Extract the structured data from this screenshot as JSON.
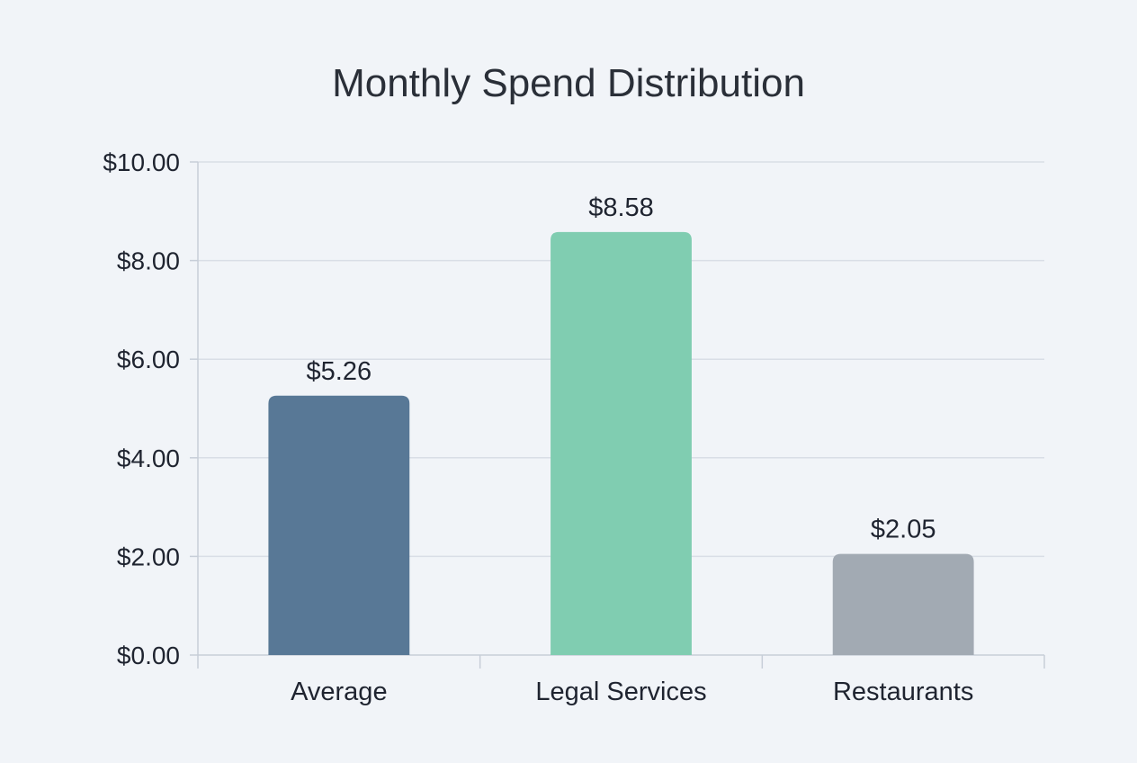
{
  "chart_data": {
    "type": "bar",
    "title": "Monthly Spend Distribution",
    "xlabel": "",
    "ylabel": "",
    "categories": [
      "Average",
      "Legal Services",
      "Restaurants"
    ],
    "values": [
      5.26,
      8.58,
      2.05
    ],
    "value_labels": [
      "$5.26",
      "$8.58",
      "$2.05"
    ],
    "colors": [
      "#587896",
      "#80cdb1",
      "#a2aab3"
    ],
    "ylim": [
      0,
      10
    ],
    "yticks": [
      0,
      2,
      4,
      6,
      8,
      10
    ],
    "ytick_labels": [
      "$0.00",
      "$2.00",
      "$4.00",
      "$6.00",
      "$8.00",
      "$10.00"
    ],
    "grid": true,
    "legend": "none"
  }
}
